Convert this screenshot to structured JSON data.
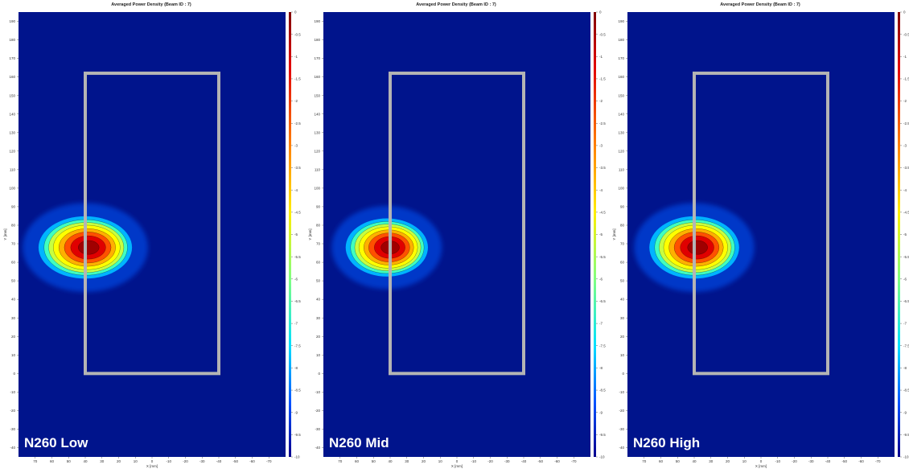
{
  "chart_data": [
    {
      "type": "heatmap",
      "title": "Averaged Power Density (Beam ID : 7)",
      "label": "N260 Low",
      "xlabel": "X [mm]",
      "ylabel": "Y [mm]",
      "xlim": [
        80,
        -80
      ],
      "ylim": [
        -45,
        195
      ],
      "x_ticks": [
        70,
        60,
        50,
        40,
        30,
        20,
        10,
        0,
        -10,
        -20,
        -30,
        -40,
        -50,
        -60,
        -70
      ],
      "y_ticks": [
        -40,
        -30,
        -20,
        -10,
        0,
        10,
        20,
        30,
        40,
        50,
        60,
        70,
        80,
        90,
        100,
        110,
        120,
        130,
        140,
        150,
        160,
        170,
        180,
        190
      ],
      "colorbar": {
        "min": -10,
        "max": 0,
        "ticks": [
          0,
          -0.5,
          -1,
          -1.5,
          -2,
          -2.5,
          -3,
          -3.5,
          -4,
          -4.5,
          -5,
          -5.5,
          -6,
          -6.5,
          -7,
          -7.5,
          -8,
          -8.5,
          -9,
          -9.5,
          -10
        ]
      },
      "hotspot": {
        "x": 40,
        "y": 68,
        "rx": 25,
        "ry": 15
      },
      "device_outline": {
        "x": [
          40,
          -40
        ],
        "y": [
          0,
          162
        ]
      }
    },
    {
      "type": "heatmap",
      "title": "Averaged Power Density (Beam ID : 7)",
      "label": "N260 Mid",
      "xlabel": "X [mm]",
      "ylabel": "Y [mm]",
      "xlim": [
        80,
        -80
      ],
      "ylim": [
        -45,
        195
      ],
      "x_ticks": [
        70,
        60,
        50,
        40,
        30,
        20,
        10,
        0,
        -10,
        -20,
        -30,
        -40,
        -50,
        -60,
        -70
      ],
      "y_ticks": [
        -40,
        -30,
        -20,
        -10,
        0,
        10,
        20,
        30,
        40,
        50,
        60,
        70,
        80,
        90,
        100,
        110,
        120,
        130,
        140,
        150,
        160,
        170,
        180,
        190
      ],
      "colorbar": {
        "min": -10,
        "max": 0,
        "ticks": [
          0,
          -0.5,
          -1,
          -1.5,
          -2,
          -2.5,
          -3,
          -3.5,
          -4,
          -4.5,
          -5,
          -5.5,
          -6,
          -6.5,
          -7,
          -7.5,
          -8,
          -8.5,
          -9,
          -9.5,
          -10
        ]
      },
      "hotspot": {
        "x": 42,
        "y": 68,
        "rx": 22,
        "ry": 14
      },
      "device_outline": {
        "x": [
          40,
          -40
        ],
        "y": [
          0,
          162
        ]
      }
    },
    {
      "type": "heatmap",
      "title": "Averaged Power Density (Beam ID : 7)",
      "label": "N260 High",
      "xlabel": "X [mm]",
      "ylabel": "Y [mm]",
      "xlim": [
        80,
        -80
      ],
      "ylim": [
        -45,
        195
      ],
      "x_ticks": [
        70,
        60,
        50,
        40,
        30,
        20,
        10,
        0,
        -10,
        -20,
        -30,
        -40,
        -50,
        -60,
        -70
      ],
      "y_ticks": [
        -40,
        -30,
        -20,
        -10,
        0,
        10,
        20,
        30,
        40,
        50,
        60,
        70,
        80,
        90,
        100,
        110,
        120,
        130,
        140,
        150,
        160,
        170,
        180,
        190
      ],
      "colorbar": {
        "min": -10,
        "max": 0,
        "ticks": [
          0,
          -0.5,
          -1,
          -1.5,
          -2,
          -2.5,
          -3,
          -3.5,
          -4,
          -4.5,
          -5,
          -5.5,
          -6,
          -6.5,
          -7,
          -7.5,
          -8,
          -8.5,
          -9,
          -9.5,
          -10
        ]
      },
      "hotspot": {
        "x": 40,
        "y": 68,
        "rx": 24,
        "ry": 15
      },
      "device_outline": {
        "x": [
          40,
          -40
        ],
        "y": [
          0,
          162
        ]
      }
    }
  ],
  "colors": {
    "background": "#00148c",
    "outline": "#b4b4b4",
    "label_text": "#ffffff"
  }
}
